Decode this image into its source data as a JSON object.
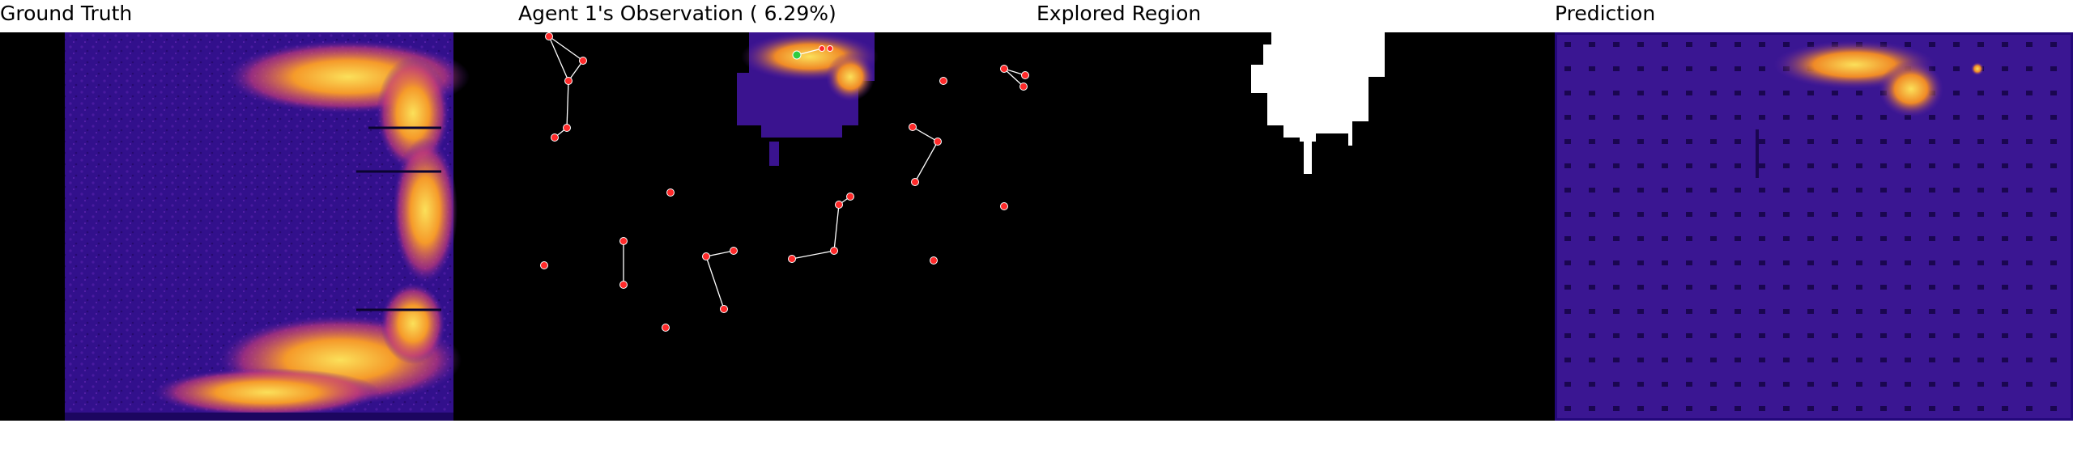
{
  "panels": {
    "ground_truth": {
      "title": "Ground Truth"
    },
    "observation": {
      "title": "Agent 1's Observation ( 6.29%)"
    },
    "explored": {
      "title": "Explored Region"
    },
    "prediction": {
      "title": "Prediction"
    }
  },
  "colors": {
    "background": "#000000",
    "field_dark": "#2e0f86",
    "field_mid": "#5a1fa6",
    "hot_orange": "#f07a1e",
    "hot_yellow": "#fbd547",
    "node_red": "#ff2a2a",
    "node_green": "#2ecc40",
    "edge": "#ffffff",
    "explored_white": "#ffffff"
  }
}
